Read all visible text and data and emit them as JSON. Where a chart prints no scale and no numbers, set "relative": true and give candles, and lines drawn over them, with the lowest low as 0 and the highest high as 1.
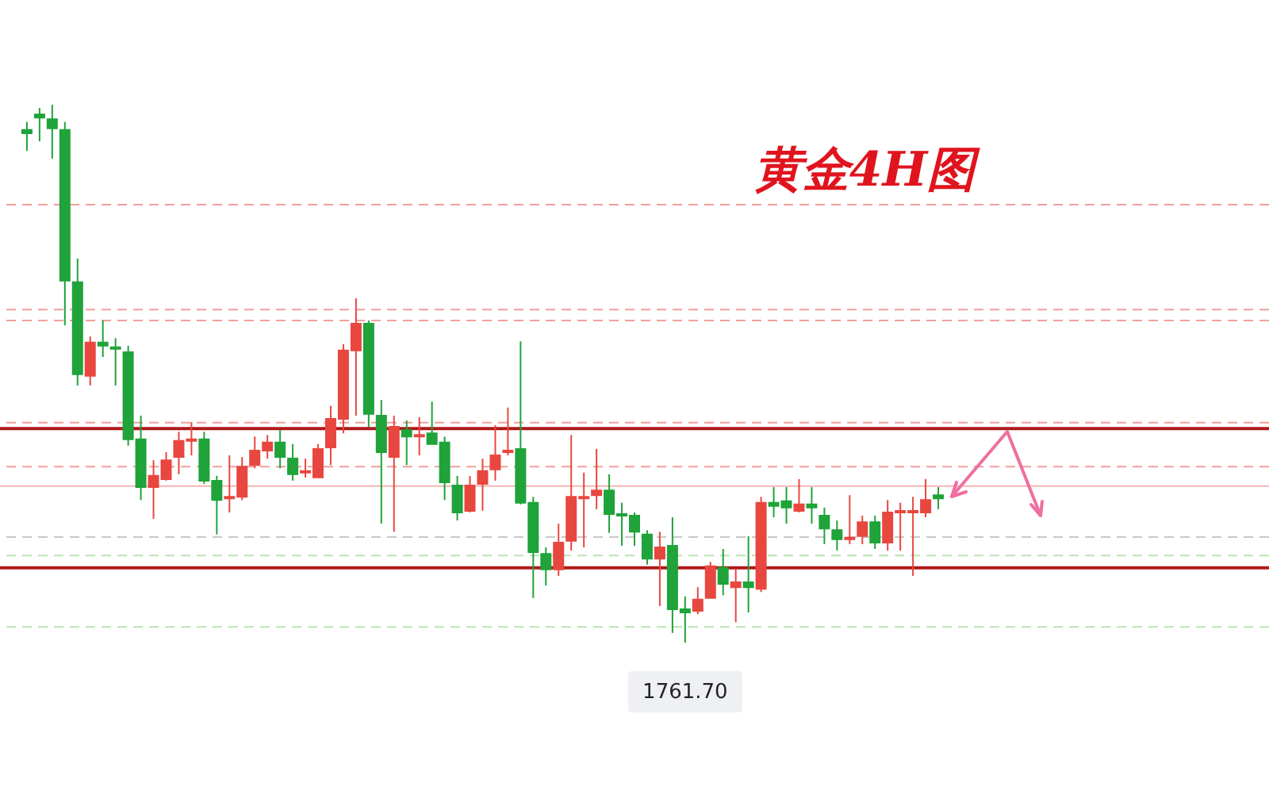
{
  "chart_data": {
    "type": "candlestick",
    "title": "黄金4H图",
    "relative": true,
    "categories": [
      null,
      null,
      null,
      null,
      null,
      null,
      null,
      null,
      null,
      null,
      null,
      null,
      null,
      null,
      null,
      null,
      null,
      null,
      null,
      null,
      null,
      null,
      null,
      null,
      null,
      null,
      null,
      null,
      null,
      null,
      null,
      null,
      null,
      null,
      null,
      null,
      null,
      null,
      null,
      null,
      null,
      null,
      null,
      null,
      null,
      null,
      null,
      null,
      null,
      null,
      null,
      null,
      null,
      null,
      null,
      null,
      null,
      null,
      null,
      null,
      null,
      null,
      null,
      null,
      null,
      null,
      null,
      null,
      null,
      null,
      null,
      null,
      null,
      null,
      null,
      null,
      null,
      null,
      null,
      null,
      null,
      null,
      null,
      null,
      null,
      null,
      null,
      null,
      null,
      null,
      null,
      null,
      null,
      null,
      null,
      null,
      null,
      null,
      null
    ],
    "ohlc": [
      null,
      [
        0.953,
        0.968,
        0.914,
        0.947
      ],
      [
        0.982,
        0.994,
        0.932,
        0.976
      ],
      [
        0.973,
        1,
        0.9,
        0.956
      ],
      [
        0.953,
        0.968,
        0.59,
        0.673
      ],
      [
        0.67,
        0.714,
        0.478,
        0.499
      ],
      [
        0.496,
        0.569,
        0.478,
        0.558
      ],
      [
        0.558,
        0.599,
        0.531,
        0.552
      ],
      [
        0.549,
        0.566,
        0.478,
        0.546
      ],
      [
        0.54,
        0.552,
        0.366,
        0.378
      ],
      [
        0.378,
        0.422,
        0.265,
        0.289
      ],
      [
        0.289,
        0.339,
        0.23,
        0.31
      ],
      [
        0.304,
        0.354,
        0.301,
        0.339
      ],
      [
        0.345,
        0.392,
        0.313,
        0.375
      ],
      [
        0.375,
        0.41,
        0.348,
        0.378
      ],
      [
        0.378,
        0.392,
        0.295,
        0.301
      ],
      [
        0.301,
        0.31,
        0.201,
        0.265
      ],
      [
        0.268,
        0.348,
        0.242,
        0.271
      ],
      [
        0.271,
        0.345,
        0.265,
        0.327
      ],
      [
        0.33,
        0.383,
        0.324,
        0.357
      ],
      [
        0.357,
        0.386,
        0.342,
        0.372
      ],
      [
        0.372,
        0.395,
        0.324,
        0.345
      ],
      [
        0.342,
        0.369,
        0.301,
        0.313
      ],
      [
        0.316,
        0.342,
        0.307,
        0.319
      ],
      [
        0.307,
        0.369,
        0.307,
        0.36
      ],
      [
        0.363,
        0.44,
        0.33,
        0.416
      ],
      [
        0.416,
        0.555,
        0.389,
        0.543
      ],
      [
        0.543,
        0.64,
        0.422,
        0.593
      ],
      [
        0.593,
        0.599,
        0.401,
        0.425
      ],
      [
        0.422,
        0.451,
        0.221,
        0.354
      ],
      [
        0.345,
        0.422,
        0.206,
        0.401
      ],
      [
        0.395,
        0.413,
        0.33,
        0.383
      ],
      [
        0.383,
        0.419,
        0.348,
        0.386
      ],
      [
        0.389,
        0.448,
        0.369,
        0.369
      ],
      [
        0.372,
        0.383,
        0.265,
        0.298
      ],
      [
        0.292,
        0.31,
        0.227,
        0.242
      ],
      [
        0.245,
        0.31,
        0.242,
        0.292
      ],
      [
        0.295,
        0.342,
        0.245,
        0.319
      ],
      [
        0.322,
        0.404,
        0.301,
        0.348
      ],
      [
        0.354,
        0.437,
        0.348,
        0.357
      ],
      [
        0.36,
        0.56,
        0.257,
        0.26
      ],
      [
        0.26,
        0.271,
        0.083,
        0.168
      ],
      [
        0.165,
        0.177,
        0.106,
        0.136
      ],
      [
        0.136,
        0.221,
        0.124,
        0.186
      ],
      [
        0.189,
        0.386,
        0.171,
        0.271
      ],
      [
        0.268,
        0.316,
        0.177,
        0.271
      ],
      [
        0.274,
        0.36,
        0.248,
        0.283
      ],
      [
        0.283,
        0.313,
        0.204,
        0.239
      ],
      [
        0.239,
        0.26,
        0.18,
        0.236
      ],
      [
        0.236,
        0.242,
        0.18,
        0.206
      ],
      [
        0.201,
        0.209,
        0.145,
        0.156
      ],
      [
        0.156,
        0.206,
        0.068,
        0.177
      ],
      [
        0.18,
        0.233,
        0.018,
        0.062
      ],
      [
        0.062,
        0.086,
        0,
        0.056
      ],
      [
        0.059,
        0.103,
        0.053,
        0.08
      ],
      [
        0.083,
        0.15,
        0.083,
        0.142
      ],
      [
        0.139,
        0.174,
        0.088,
        0.109
      ],
      [
        0.103,
        0.136,
        0.038,
        0.112
      ],
      [
        0.112,
        0.198,
        0.056,
        0.103
      ],
      [
        0.1,
        0.271,
        0.094,
        0.26
      ],
      [
        0.26,
        0.289,
        0.233,
        0.254
      ],
      [
        0.263,
        0.289,
        0.221,
        0.251
      ],
      [
        0.245,
        0.304,
        0.242,
        0.257
      ],
      [
        0.257,
        0.289,
        0.221,
        0.251
      ],
      [
        0.236,
        0.251,
        0.183,
        0.212
      ],
      [
        0.209,
        0.227,
        0.171,
        0.192
      ],
      [
        0.192,
        0.274,
        0.183,
        0.195
      ],
      [
        0.198,
        0.236,
        0.183,
        0.224
      ],
      [
        0.224,
        0.236,
        0.174,
        0.186
      ],
      [
        0.186,
        0.265,
        0.171,
        0.242
      ],
      [
        0.242,
        0.26,
        0.171,
        0.245
      ],
      [
        0.242,
        0.271,
        0.124,
        0.245
      ],
      [
        0.242,
        0.304,
        0.233,
        0.265
      ],
      [
        0.274,
        0.289,
        0.248,
        0.268
      ],
      null,
      null,
      null,
      null,
      null,
      null,
      null,
      null,
      null,
      null,
      null,
      null,
      null,
      null,
      null,
      null,
      null,
      null,
      null,
      null,
      null,
      null,
      null,
      null,
      null
    ],
    "colors": [
      null,
      "#1fa33a",
      "#1fa33a",
      "#1fa33a",
      "#1fa33a",
      "#1fa33a",
      "#e8473f",
      "#1fa33a",
      "#1fa33a",
      "#1fa33a",
      "#1fa33a",
      "#e8473f",
      "#e8473f",
      "#e8473f",
      "#e8473f",
      "#1fa33a",
      "#1fa33a",
      "#e8473f",
      "#e8473f",
      "#e8473f",
      "#e8473f",
      "#1fa33a",
      "#1fa33a",
      "#e8473f",
      "#e8473f",
      "#e8473f",
      "#e8473f",
      "#e8473f",
      "#1fa33a",
      "#1fa33a",
      "#e8473f",
      "#1fa33a",
      "#e8473f",
      "#1fa33a",
      "#1fa33a",
      "#1fa33a",
      "#e8473f",
      "#e8473f",
      "#e8473f",
      "#e8473f",
      "#1fa33a",
      "#1fa33a",
      "#1fa33a",
      "#e8473f",
      "#e8473f",
      "#e8473f",
      "#e8473f",
      "#1fa33a",
      "#1fa33a",
      "#1fa33a",
      "#1fa33a",
      "#e8473f",
      "#1fa33a",
      "#1fa33a",
      "#e8473f",
      "#e8473f",
      "#1fa33a",
      "#e8473f",
      "#1fa33a",
      "#e8473f",
      "#1fa33a",
      "#1fa33a",
      "#e8473f",
      "#1fa33a",
      "#1fa33a",
      "#1fa33a",
      "#e8473f",
      "#e8473f",
      "#1fa33a",
      "#e8473f",
      "#e8473f",
      "#e8473f",
      "#e8473f",
      "#1fa33a",
      null,
      null,
      null,
      null,
      null,
      null,
      null,
      null,
      null,
      null,
      null,
      null,
      null,
      null,
      null,
      null,
      null,
      null,
      null,
      null,
      null,
      null,
      null,
      null,
      null
    ],
    "ref_lines": [
      {
        "axis": "y",
        "value": 0.814,
        "color": "#f0a09a",
        "line_style": "dashed"
      },
      {
        "axis": "y",
        "value": 0.619,
        "color": "#f0a09a",
        "line_style": "dashed"
      },
      {
        "axis": "y",
        "value": 0.599,
        "color": "#f0a09a",
        "line_style": "dashed"
      },
      {
        "axis": "y",
        "value": 0.409,
        "color": "#f0a09a",
        "line_style": "dashed"
      },
      {
        "axis": "y",
        "value": 0.398,
        "color": "#b01818",
        "line_style": "solid"
      },
      {
        "axis": "y",
        "value": 0.327,
        "color": "#f0a09a",
        "line_style": "dashed"
      },
      {
        "axis": "y",
        "value": 0.291,
        "color": "#f4b4b4",
        "line_style": "solid"
      },
      {
        "axis": "y",
        "value": 0.196,
        "color": "#c8c8c8",
        "line_style": "dashed"
      },
      {
        "axis": "y",
        "value": 0.162,
        "color": "#b8e6b0",
        "line_style": "dashed"
      },
      {
        "axis": "y",
        "value": 0.139,
        "color": "#b01818",
        "line_style": "solid"
      },
      {
        "axis": "y",
        "value": 0.029,
        "color": "#b8e6b0",
        "line_style": "dashed"
      }
    ],
    "annotations": [
      {
        "text": "1761.70",
        "y": 0
      }
    ]
  }
}
